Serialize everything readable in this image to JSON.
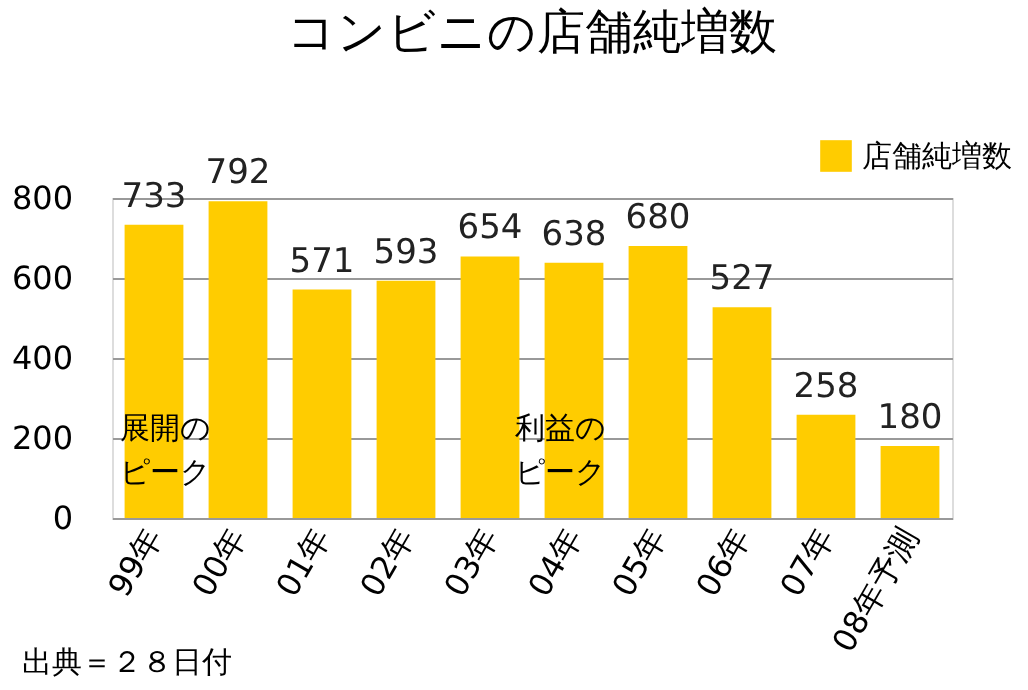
{
  "chart_data": {
    "type": "bar",
    "title": "コンビニの店舗純増数",
    "categories": [
      "99年",
      "00年",
      "01年",
      "02年",
      "03年",
      "04年",
      "05年",
      "06年",
      "07年",
      "08年予測"
    ],
    "series": [
      {
        "name": "店舗純増数",
        "color": "#ffcc00",
        "values": [
          733,
          792,
          571,
          593,
          654,
          638,
          680,
          527,
          258,
          180
        ]
      }
    ],
    "ylim": [
      0,
      800
    ],
    "yticks": [
      0,
      200,
      400,
      600,
      800
    ],
    "grid": "y",
    "legend": "top right",
    "data_labels": true,
    "annotations": [
      "展開のピーク",
      "利益のピーク",
      "出典＝２８日付"
    ]
  }
}
